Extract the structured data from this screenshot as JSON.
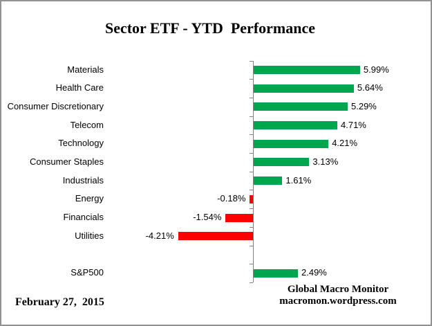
{
  "title": "Sector ETF - YTD  Performance",
  "footer": {
    "date": "February 27,  2015",
    "brand_name": "Global Macro Monitor",
    "brand_url": "macromon.wordpress.com"
  },
  "colors": {
    "positive_bar": "#00A64F",
    "negative_bar": "#FF0000",
    "axis": "#808080",
    "border": "#919191",
    "text": "#000000"
  },
  "chart_data": {
    "type": "bar",
    "orientation": "horizontal",
    "title": "Sector ETF - YTD  Performance",
    "value_unit": "percent",
    "xlim": [
      -5,
      7
    ],
    "gridlines": false,
    "legend": "none",
    "rows": [
      {
        "category": "Materials",
        "value": 5.99,
        "label": "5.99%"
      },
      {
        "category": "Health Care",
        "value": 5.64,
        "label": "5.64%"
      },
      {
        "category": "Consumer Discretionary",
        "value": 5.29,
        "label": "5.29%"
      },
      {
        "category": "Telecom",
        "value": 4.71,
        "label": "4.71%"
      },
      {
        "category": "Technology",
        "value": 4.21,
        "label": "4.21%"
      },
      {
        "category": "Consumer Staples",
        "value": 3.13,
        "label": "3.13%"
      },
      {
        "category": "Industrials",
        "value": 1.61,
        "label": "1.61%"
      },
      {
        "category": "Energy",
        "value": -0.18,
        "label": "-0.18%"
      },
      {
        "category": "Financials",
        "value": -1.54,
        "label": "-1.54%"
      },
      {
        "category": "Utilities",
        "value": -4.21,
        "label": "-4.21%"
      },
      {
        "category": "",
        "value": null,
        "label": ""
      },
      {
        "category": "S&P500",
        "value": 2.49,
        "label": "2.49%"
      }
    ]
  }
}
